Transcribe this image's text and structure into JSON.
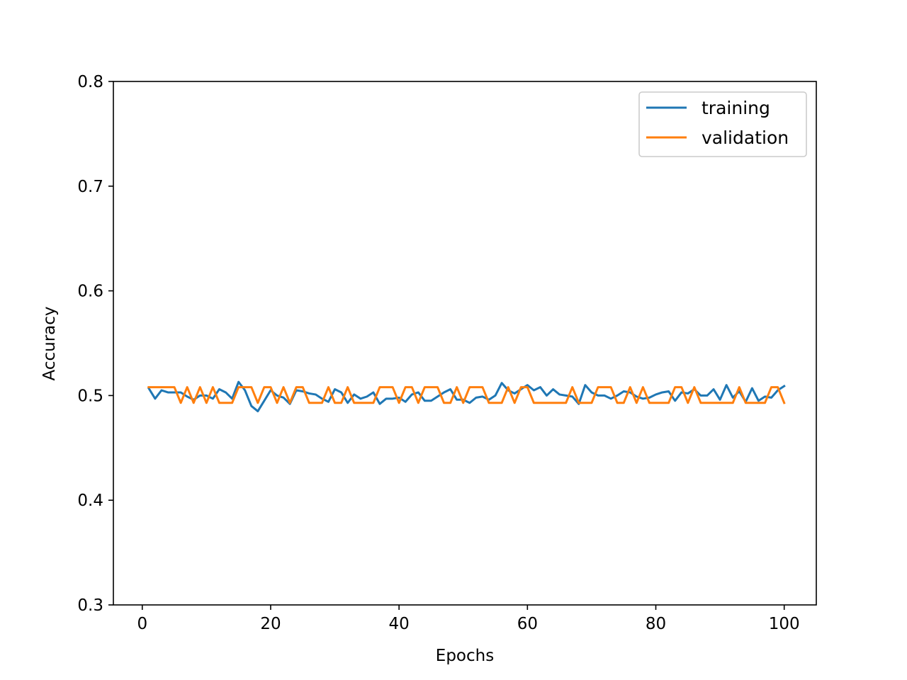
{
  "chart_data": {
    "type": "line",
    "title": "",
    "xlabel": "Epochs",
    "ylabel": "Accuracy",
    "xlim": [
      -4.5,
      105
    ],
    "ylim": [
      0.3,
      0.8
    ],
    "x_ticks": [
      0,
      20,
      40,
      60,
      80,
      100
    ],
    "y_ticks": [
      0.3,
      0.4,
      0.5,
      0.6,
      0.7,
      0.8
    ],
    "grid": false,
    "legend_position": "top-right",
    "x": [
      1,
      2,
      3,
      4,
      5,
      6,
      7,
      8,
      9,
      10,
      11,
      12,
      13,
      14,
      15,
      16,
      17,
      18,
      19,
      20,
      21,
      22,
      23,
      24,
      25,
      26,
      27,
      28,
      29,
      30,
      31,
      32,
      33,
      34,
      35,
      36,
      37,
      38,
      39,
      40,
      41,
      42,
      43,
      44,
      45,
      46,
      47,
      48,
      49,
      50,
      51,
      52,
      53,
      54,
      55,
      56,
      57,
      58,
      59,
      60,
      61,
      62,
      63,
      64,
      65,
      66,
      67,
      68,
      69,
      70,
      71,
      72,
      73,
      74,
      75,
      76,
      77,
      78,
      79,
      80,
      81,
      82,
      83,
      84,
      85,
      86,
      87,
      88,
      89,
      90,
      91,
      92,
      93,
      94,
      95,
      96,
      97,
      98,
      99,
      100
    ],
    "series": [
      {
        "name": "training",
        "color": "#1f77b4",
        "values": [
          0.507,
          0.497,
          0.505,
          0.503,
          0.503,
          0.503,
          0.499,
          0.496,
          0.5,
          0.5,
          0.497,
          0.506,
          0.503,
          0.497,
          0.513,
          0.505,
          0.49,
          0.485,
          0.495,
          0.505,
          0.5,
          0.498,
          0.492,
          0.505,
          0.504,
          0.502,
          0.501,
          0.497,
          0.494,
          0.506,
          0.503,
          0.493,
          0.501,
          0.497,
          0.499,
          0.503,
          0.492,
          0.497,
          0.497,
          0.498,
          0.494,
          0.501,
          0.503,
          0.495,
          0.495,
          0.499,
          0.503,
          0.506,
          0.496,
          0.496,
          0.493,
          0.498,
          0.499,
          0.496,
          0.5,
          0.512,
          0.505,
          0.502,
          0.506,
          0.51,
          0.505,
          0.508,
          0.5,
          0.506,
          0.501,
          0.5,
          0.499,
          0.492,
          0.51,
          0.503,
          0.5,
          0.5,
          0.497,
          0.5,
          0.504,
          0.503,
          0.499,
          0.497,
          0.498,
          0.501,
          0.503,
          0.504,
          0.495,
          0.503,
          0.502,
          0.506,
          0.5,
          0.5,
          0.506,
          0.496,
          0.51,
          0.498,
          0.504,
          0.494,
          0.507,
          0.495,
          0.499,
          0.498,
          0.505,
          0.509
        ]
      },
      {
        "name": "validation",
        "color": "#ff7f0e",
        "values": [
          0.508,
          0.508,
          0.508,
          0.508,
          0.508,
          0.493,
          0.508,
          0.493,
          0.508,
          0.493,
          0.508,
          0.493,
          0.493,
          0.493,
          0.508,
          0.508,
          0.508,
          0.493,
          0.508,
          0.508,
          0.493,
          0.508,
          0.493,
          0.508,
          0.508,
          0.493,
          0.493,
          0.493,
          0.508,
          0.493,
          0.493,
          0.508,
          0.493,
          0.493,
          0.493,
          0.493,
          0.508,
          0.508,
          0.508,
          0.493,
          0.508,
          0.508,
          0.493,
          0.508,
          0.508,
          0.508,
          0.493,
          0.493,
          0.508,
          0.493,
          0.508,
          0.508,
          0.508,
          0.493,
          0.493,
          0.493,
          0.508,
          0.493,
          0.508,
          0.508,
          0.493,
          0.493,
          0.493,
          0.493,
          0.493,
          0.493,
          0.508,
          0.493,
          0.493,
          0.493,
          0.508,
          0.508,
          0.508,
          0.493,
          0.493,
          0.508,
          0.493,
          0.508,
          0.493,
          0.493,
          0.493,
          0.493,
          0.508,
          0.508,
          0.493,
          0.508,
          0.493,
          0.493,
          0.493,
          0.493,
          0.493,
          0.493,
          0.508,
          0.493,
          0.493,
          0.493,
          0.493,
          0.508,
          0.508,
          0.493
        ]
      }
    ]
  }
}
